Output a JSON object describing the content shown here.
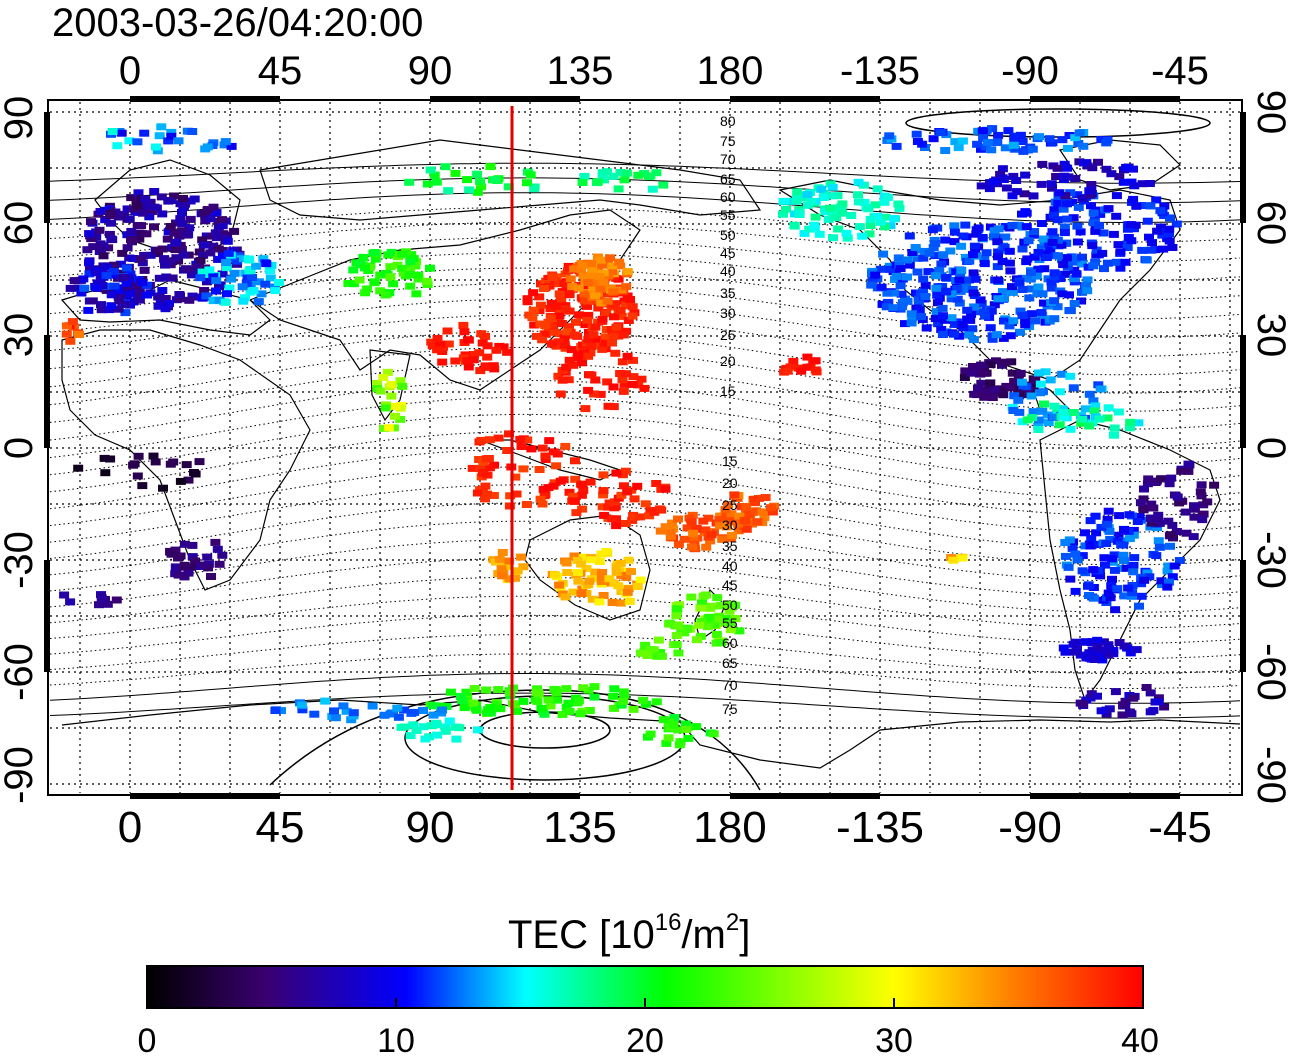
{
  "title": "2003-03-26/04:20:00",
  "map": {
    "lon_ticks": [
      "0",
      "45",
      "90",
      "135",
      "180",
      "-135",
      "-90",
      "-45"
    ],
    "lat_ticks_left": [
      "90",
      "60",
      "30",
      "0",
      "-30",
      "-60",
      "-90"
    ],
    "lat_ticks_right": [
      "90",
      "60",
      "30",
      "0",
      "-30",
      "-60",
      "-90"
    ],
    "contour_labels_north": [
      "80",
      "75",
      "70",
      "65",
      "60",
      "55",
      "50",
      "45",
      "40",
      "35",
      "30",
      "25",
      "20",
      "15"
    ],
    "contour_labels_south": [
      "15",
      "20",
      "25",
      "30",
      "35",
      "40",
      "45",
      "50",
      "55",
      "60",
      "65",
      "70",
      "75"
    ],
    "marker_line_color": "#e00000"
  },
  "colorbar": {
    "label_main": "TEC  [10",
    "label_exp": "16",
    "label_mid": "/m",
    "label_exp2": "2",
    "label_end": "]",
    "ticks": [
      "0",
      "10",
      "20",
      "30",
      "40"
    ],
    "colors": [
      "#000000",
      "#3a0070",
      "#0000ff",
      "#00ffff",
      "#00ff00",
      "#ffff00",
      "#ff8800",
      "#ff0000"
    ]
  }
}
